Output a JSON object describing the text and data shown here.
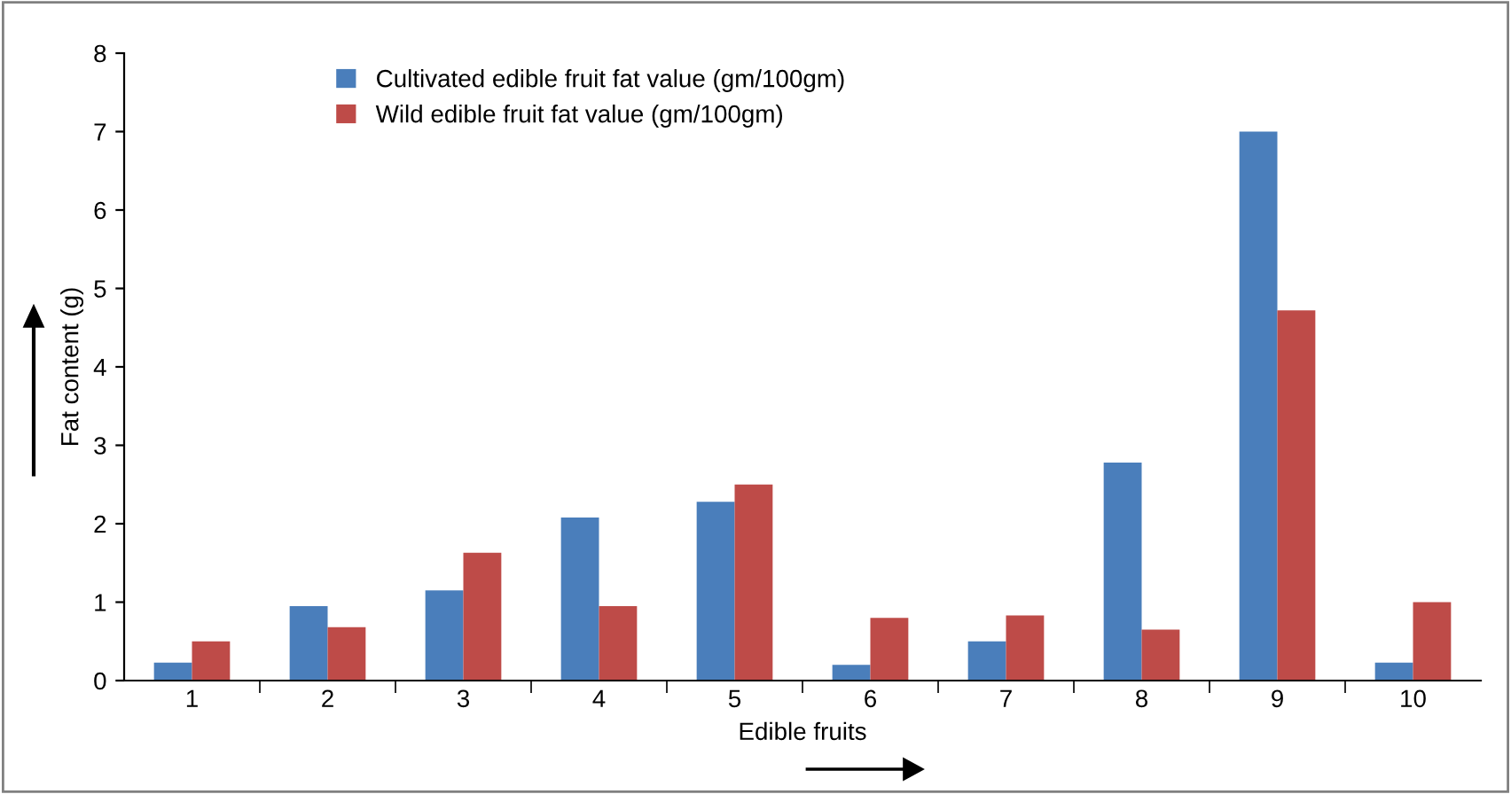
{
  "chart_data": {
    "type": "bar",
    "xlabel": "Edible fruits",
    "ylabel": "Fat content (g)",
    "categories": [
      "1",
      "2",
      "3",
      "4",
      "5",
      "6",
      "7",
      "8",
      "9",
      "10"
    ],
    "series": [
      {
        "name": "Cultivated edible fruit fat value (gm/100gm)",
        "color": "#4a7ebb",
        "values": [
          0.23,
          0.95,
          1.15,
          2.08,
          2.28,
          0.2,
          0.5,
          2.78,
          7.0,
          0.23
        ]
      },
      {
        "name": "Wild edible fruit fat value (gm/100gm)",
        "color": "#be4b48",
        "values": [
          0.5,
          0.68,
          1.63,
          0.95,
          2.5,
          0.8,
          0.83,
          0.65,
          4.72,
          1.0
        ]
      }
    ],
    "ylim": [
      0,
      8
    ],
    "yticks": [
      0,
      1,
      2,
      3,
      4,
      5,
      6,
      7,
      8
    ],
    "grid": false,
    "legend": "top"
  }
}
